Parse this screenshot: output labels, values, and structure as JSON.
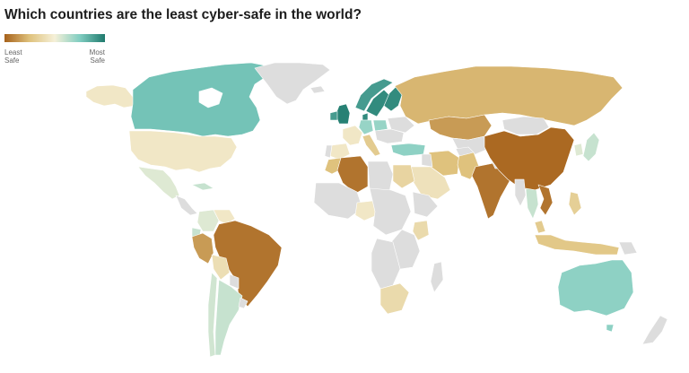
{
  "title": "Which countries are the least cyber-safe in the world?",
  "legend": {
    "low_line1": "Least",
    "low_line2": "Safe",
    "high_line1": "Most",
    "high_line2": "Safe",
    "colors": [
      "#a6611a",
      "#dfc27d",
      "#f5f0d8",
      "#80cdc1",
      "#1f7a6d"
    ],
    "no_data_color": "#dddddd"
  },
  "map": {
    "type": "choropleth",
    "regions": [
      {
        "name": "Canada",
        "level": 0.78
      },
      {
        "name": "United States",
        "level": 0.45
      },
      {
        "name": "Mexico",
        "level": 0.55
      },
      {
        "name": "Cuba",
        "level": 0.6
      },
      {
        "name": "Brazil",
        "level": 0.05
      },
      {
        "name": "Peru",
        "level": 0.15
      },
      {
        "name": "Colombia",
        "level": 0.55
      },
      {
        "name": "Bolivia",
        "level": 0.4
      },
      {
        "name": "Argentina",
        "level": 0.6
      },
      {
        "name": "Chile",
        "level": 0.58
      },
      {
        "name": "Ecuador",
        "level": 0.6
      },
      {
        "name": "Venezuela",
        "level": 0.45
      },
      {
        "name": "United Kingdom",
        "level": 0.98
      },
      {
        "name": "Norway",
        "level": 0.9
      },
      {
        "name": "Sweden",
        "level": 0.95
      },
      {
        "name": "Finland",
        "level": 0.95
      },
      {
        "name": "Denmark",
        "level": 0.95
      },
      {
        "name": "Ireland",
        "level": 0.9
      },
      {
        "name": "Germany",
        "level": 0.7
      },
      {
        "name": "France",
        "level": 0.45
      },
      {
        "name": "Spain",
        "level": 0.45
      },
      {
        "name": "Italy",
        "level": 0.3
      },
      {
        "name": "Poland",
        "level": 0.7
      },
      {
        "name": "Russia",
        "level": 0.22
      },
      {
        "name": "Kazakhstan",
        "level": 0.15
      },
      {
        "name": "China",
        "level": 0.02
      },
      {
        "name": "India",
        "level": 0.05
      },
      {
        "name": "Pakistan",
        "level": 0.25
      },
      {
        "name": "Iran",
        "level": 0.25
      },
      {
        "name": "Turkey",
        "level": 0.72
      },
      {
        "name": "Saudi Arabia",
        "level": 0.42
      },
      {
        "name": "Algeria",
        "level": 0.05
      },
      {
        "name": "Morocco",
        "level": 0.25
      },
      {
        "name": "Egypt",
        "level": 0.35
      },
      {
        "name": "South Africa",
        "level": 0.38
      },
      {
        "name": "Kenya",
        "level": 0.38
      },
      {
        "name": "Nigeria",
        "level": 0.45
      },
      {
        "name": "Vietnam",
        "level": 0.05
      },
      {
        "name": "Thailand",
        "level": 0.6
      },
      {
        "name": "Indonesia",
        "level": 0.28
      },
      {
        "name": "Malaysia",
        "level": 0.3
      },
      {
        "name": "Philippines",
        "level": 0.32
      },
      {
        "name": "Japan",
        "level": 0.6
      },
      {
        "name": "South Korea",
        "level": 0.55
      },
      {
        "name": "Mongolia",
        "level": null
      },
      {
        "name": "Australia",
        "level": 0.72
      },
      {
        "name": "New Zealand",
        "level": null
      },
      {
        "name": "Greenland",
        "level": null
      }
    ]
  }
}
